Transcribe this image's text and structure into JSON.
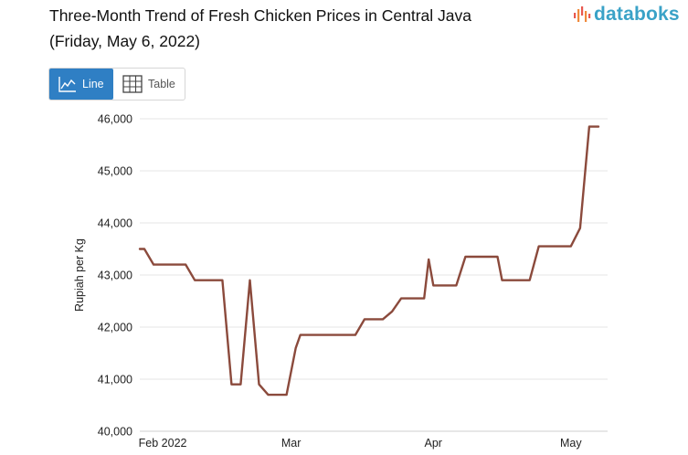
{
  "header": {
    "title_line1": "Three-Month Trend of Fresh Chicken Prices in Central Java",
    "title_line2": "(Friday, May 6, 2022)",
    "brand": "databoks"
  },
  "view_toggle": {
    "line_label": "Line",
    "table_label": "Table",
    "selected": "Line"
  },
  "colors": {
    "line": "#8b4a3c",
    "grid": "#e4e4e4",
    "axis_text": "#222222",
    "toggle_active": "#2f7fc4",
    "brand": "#3aa2c7",
    "brand_mark": "#e8584f"
  },
  "chart_data": {
    "type": "line",
    "title": "Three-Month Trend of Fresh Chicken Prices in Central Java",
    "subtitle": "(Friday, May 6, 2022)",
    "xlabel": "",
    "ylabel": "Rupiah per Kg",
    "ylim": [
      40000,
      46000
    ],
    "yticks": [
      40000,
      41000,
      42000,
      43000,
      44000,
      45000,
      46000
    ],
    "ytick_labels": [
      "40,000",
      "41,000",
      "42,000",
      "43,000",
      "44,000",
      "45,000",
      "46,000"
    ],
    "xlim": [
      "2022-01-27",
      "2022-05-09"
    ],
    "xticks": [
      {
        "date": "2022-02-01",
        "label": "Feb 2022"
      },
      {
        "date": "2022-03-01",
        "label": "Mar"
      },
      {
        "date": "2022-04-01",
        "label": "Apr"
      },
      {
        "date": "2022-05-01",
        "label": "May"
      }
    ],
    "grid": true,
    "legend": "none",
    "series": [
      {
        "points": [
          {
            "x": "2022-01-27",
            "y": 43500
          },
          {
            "x": "2022-01-28",
            "y": 43500
          },
          {
            "x": "2022-01-30",
            "y": 43200
          },
          {
            "x": "2022-02-06",
            "y": 43200
          },
          {
            "x": "2022-02-08",
            "y": 42900
          },
          {
            "x": "2022-02-14",
            "y": 42900
          },
          {
            "x": "2022-02-16",
            "y": 40900
          },
          {
            "x": "2022-02-18",
            "y": 40900
          },
          {
            "x": "2022-02-20",
            "y": 42900
          },
          {
            "x": "2022-02-22",
            "y": 40900
          },
          {
            "x": "2022-02-24",
            "y": 40700
          },
          {
            "x": "2022-02-28",
            "y": 40700
          },
          {
            "x": "2022-03-02",
            "y": 41600
          },
          {
            "x": "2022-03-03",
            "y": 41850
          },
          {
            "x": "2022-03-15",
            "y": 41850
          },
          {
            "x": "2022-03-17",
            "y": 42150
          },
          {
            "x": "2022-03-21",
            "y": 42150
          },
          {
            "x": "2022-03-23",
            "y": 42300
          },
          {
            "x": "2022-03-25",
            "y": 42550
          },
          {
            "x": "2022-03-30",
            "y": 42550
          },
          {
            "x": "2022-03-31",
            "y": 43300
          },
          {
            "x": "2022-04-01",
            "y": 42800
          },
          {
            "x": "2022-04-06",
            "y": 42800
          },
          {
            "x": "2022-04-08",
            "y": 43350
          },
          {
            "x": "2022-04-15",
            "y": 43350
          },
          {
            "x": "2022-04-16",
            "y": 42900
          },
          {
            "x": "2022-04-22",
            "y": 42900
          },
          {
            "x": "2022-04-24",
            "y": 43550
          },
          {
            "x": "2022-05-01",
            "y": 43550
          },
          {
            "x": "2022-05-03",
            "y": 43900
          },
          {
            "x": "2022-05-05",
            "y": 45850
          },
          {
            "x": "2022-05-07",
            "y": 45850
          }
        ]
      }
    ]
  }
}
